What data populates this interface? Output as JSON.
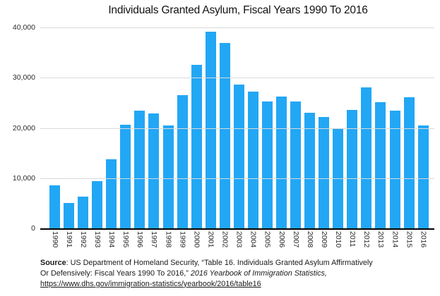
{
  "chart_data": {
    "type": "bar",
    "title": "Individuals Granted Asylum, Fiscal Years 1990 To 2016",
    "xlabel": "",
    "ylabel": "",
    "categories": [
      "1990",
      "1991",
      "1992",
      "1993",
      "1994",
      "1995",
      "1996",
      "1997",
      "1998",
      "1999",
      "2000",
      "2001",
      "2002",
      "2003",
      "2004",
      "2005",
      "2006",
      "2007",
      "2008",
      "2009",
      "2010",
      "2011",
      "2012",
      "2013",
      "2014",
      "2015",
      "2016"
    ],
    "values": [
      8500,
      5000,
      6300,
      9400,
      13800,
      20700,
      23500,
      22900,
      20500,
      26500,
      32500,
      39200,
      36900,
      28700,
      27300,
      25300,
      26300,
      25300,
      23000,
      22200,
      19800,
      23600,
      28100,
      25100,
      23400,
      26100,
      20500
    ],
    "ylim": [
      0,
      40000
    ],
    "ytick_values": [
      0,
      10000,
      20000,
      30000,
      40000
    ],
    "ytick_labels": [
      "0",
      "10,000",
      "20,000",
      "30,000",
      "40,000"
    ],
    "grid": true,
    "legend": false,
    "bar_color": "#22a7f5",
    "gridline_color": "#d9d9d9",
    "axis_color": "#000000",
    "text_color": "#2b2b2b"
  },
  "source": {
    "line1_bold": "Source",
    "line1_rest": ": US Department of Homeland Security, “Table 16. Individuals Granted Asylum Affirmatively",
    "line2_normal": "Or Defensively: Fiscal Years 1990 To 2016,” ",
    "line2_italic": "2016 Yearbook of Immigration Statistics,",
    "line3_url": "https://www.dhs.gov/immigration-statistics/yearbook/2016/table16"
  }
}
